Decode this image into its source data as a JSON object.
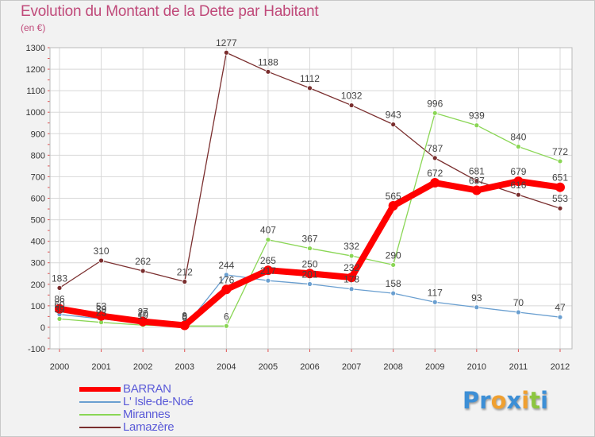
{
  "chart_data": {
    "type": "line",
    "title": "Evolution du Montant de la Dette par Habitant",
    "subtitle": "(en €)",
    "xlabel": "",
    "ylabel": "",
    "ylim": [
      -100,
      1300
    ],
    "yticks": [
      -100,
      0,
      100,
      200,
      300,
      400,
      500,
      600,
      700,
      800,
      900,
      1000,
      1100,
      1200,
      1300
    ],
    "grid": true,
    "categories": [
      "2000",
      "2001",
      "2002",
      "2003",
      "2004",
      "2005",
      "2006",
      "2007",
      "2008",
      "2009",
      "2010",
      "2011",
      "2012"
    ],
    "series": [
      {
        "name": "BARRAN",
        "color": "#ff0000",
        "values": [
          86,
          53,
          27,
          9,
          176,
          265,
          250,
          232,
          565,
          672,
          637,
          679,
          651
        ]
      },
      {
        "name": "L' Isle-de-Noé",
        "color": "#6a9fd0",
        "values": [
          60,
          39,
          20,
          0,
          244,
          217,
          201,
          178,
          158,
          117,
          93,
          70,
          47
        ]
      },
      {
        "name": "Mirannes",
        "color": "#8ad655",
        "values": [
          39,
          23,
          10,
          6,
          6,
          407,
          367,
          332,
          290,
          996,
          939,
          840,
          772
        ]
      },
      {
        "name": "Lamazère",
        "color": "#7a2e2e",
        "values": [
          183,
          310,
          262,
          212,
          1277,
          1188,
          1112,
          1032,
          943,
          787,
          681,
          616,
          553
        ]
      }
    ]
  },
  "logo": {
    "letters": [
      "P",
      "r",
      "o",
      "x",
      "i",
      "t",
      "i"
    ],
    "colors": [
      "#3d8fd6",
      "#3d8fd6",
      "#f0a030",
      "#3d8fd6",
      "#f0a030",
      "#8cc63f",
      "#3d8fd6"
    ]
  }
}
